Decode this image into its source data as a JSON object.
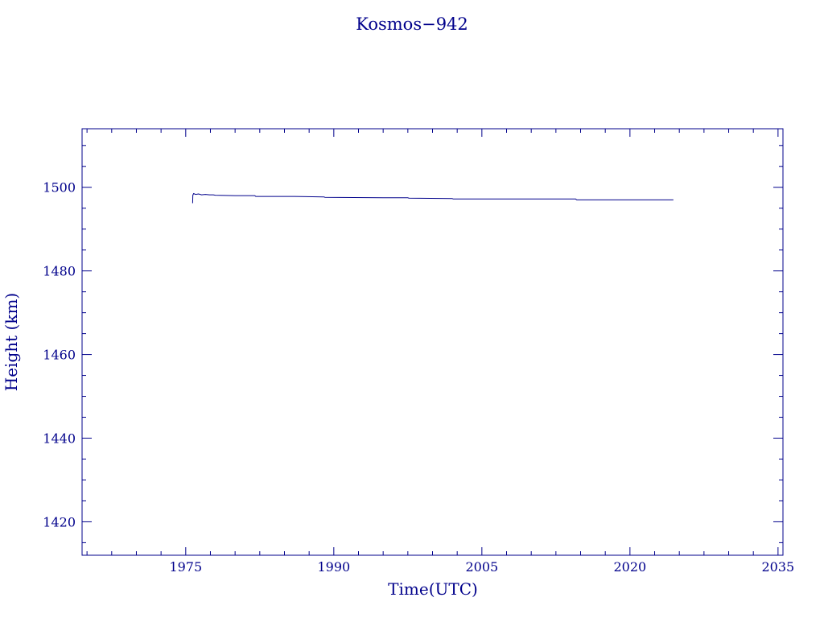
{
  "chart_data": {
    "type": "line",
    "title": "Kosmos−942",
    "xlabel": "Time(UTC)",
    "ylabel": "Height (km)",
    "xlim": [
      1964.5,
      2035.5
    ],
    "ylim": [
      1412,
      1514
    ],
    "x_ticks": [
      1975,
      1990,
      2005,
      2020,
      2035
    ],
    "y_ticks": [
      1420,
      1440,
      1460,
      1480,
      1500
    ],
    "x_minor_step": 2.5,
    "y_minor_step": 5,
    "grid": false,
    "color": "#00008b",
    "series": [
      {
        "points": [
          [
            1975.7,
            1496.2
          ],
          [
            1975.72,
            1498.1
          ],
          [
            1975.8,
            1498.5
          ],
          [
            1976.0,
            1498.3
          ],
          [
            1976.3,
            1498.4
          ],
          [
            1976.6,
            1498.2
          ],
          [
            1977.0,
            1498.3
          ],
          [
            1977.4,
            1498.2
          ],
          [
            1977.8,
            1498.2
          ],
          [
            1978.0,
            1498.1
          ],
          [
            1980.0,
            1498.0
          ],
          [
            1982.0,
            1498.0
          ],
          [
            1982.1,
            1497.8
          ],
          [
            1986.0,
            1497.8
          ],
          [
            1989.0,
            1497.7
          ],
          [
            1989.1,
            1497.6
          ],
          [
            1995.0,
            1497.5
          ],
          [
            1997.5,
            1497.5
          ],
          [
            1997.6,
            1497.4
          ],
          [
            2002.0,
            1497.3
          ],
          [
            2002.1,
            1497.2
          ],
          [
            2008.0,
            1497.2
          ],
          [
            2014.5,
            1497.2
          ],
          [
            2014.6,
            1497.0
          ],
          [
            2020.0,
            1497.0
          ],
          [
            2024.4,
            1497.0
          ]
        ]
      }
    ]
  }
}
